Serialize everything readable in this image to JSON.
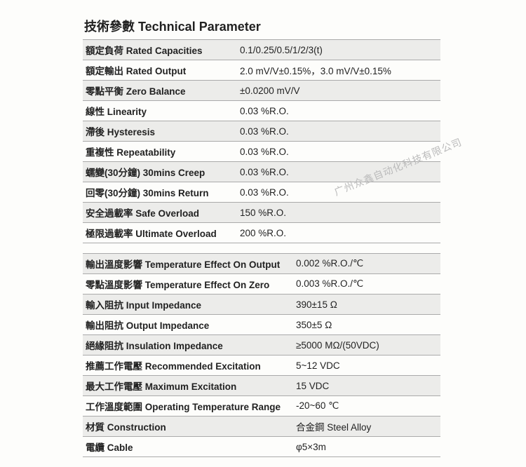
{
  "title": "技術參數 Technical Parameter",
  "watermark": "广州众鑫自动化科技有限公司",
  "table1": {
    "rows": [
      {
        "label": "額定負荷 Rated Capacities",
        "value": "0.1/0.25/0.5/1/2/3(t)"
      },
      {
        "label": "額定輸出 Rated Output",
        "value": "2.0 mV/V±0.15%，3.0 mV/V±0.15%"
      },
      {
        "label": "零點平衡 Zero Balance",
        "value": "±0.0200 mV/V"
      },
      {
        "label": "線性 Linearity",
        "value": "0.03 %R.O."
      },
      {
        "label": "滯後 Hysteresis",
        "value": "0.03 %R.O."
      },
      {
        "label": "重複性 Repeatability",
        "value": "0.03 %R.O."
      },
      {
        "label": "蠕變(30分鐘) 30mins Creep",
        "value": "0.03 %R.O."
      },
      {
        "label": "回零(30分鐘) 30mins Return",
        "value": "0.03 %R.O."
      },
      {
        "label": "安全過載率 Safe Overload",
        "value": "150 %R.O."
      },
      {
        "label": "極限過載率 Ultimate Overload",
        "value": "200 %R.O."
      }
    ]
  },
  "table2": {
    "rows": [
      {
        "label": "輸出溫度影響 Temperature Effect On Output",
        "value": "0.002 %R.O./℃"
      },
      {
        "label": "零點溫度影響 Temperature Effect On Zero",
        "value": "0.003 %R.O./℃"
      },
      {
        "label": "輸入阻抗 Input Impedance",
        "value": "390±15 Ω"
      },
      {
        "label": "輸出阻抗 Output Impedance",
        "value": "350±5 Ω"
      },
      {
        "label": "絕緣阻抗 Insulation Impedance",
        "value": "≥5000 MΩ/(50VDC)"
      },
      {
        "label": "推薦工作電壓 Recommended Excitation",
        "value": "5~12 VDC"
      },
      {
        "label": "最大工作電壓 Maximum Excitation",
        "value": "15 VDC"
      },
      {
        "label": "工作溫度範圍 Operating Temperature Range",
        "value": "-20~60 ℃"
      },
      {
        "label": "材質 Construction",
        "value": "合金鋼 Steel Alloy"
      },
      {
        "label": "電纜 Cable",
        "value": "φ5×3m"
      }
    ]
  }
}
